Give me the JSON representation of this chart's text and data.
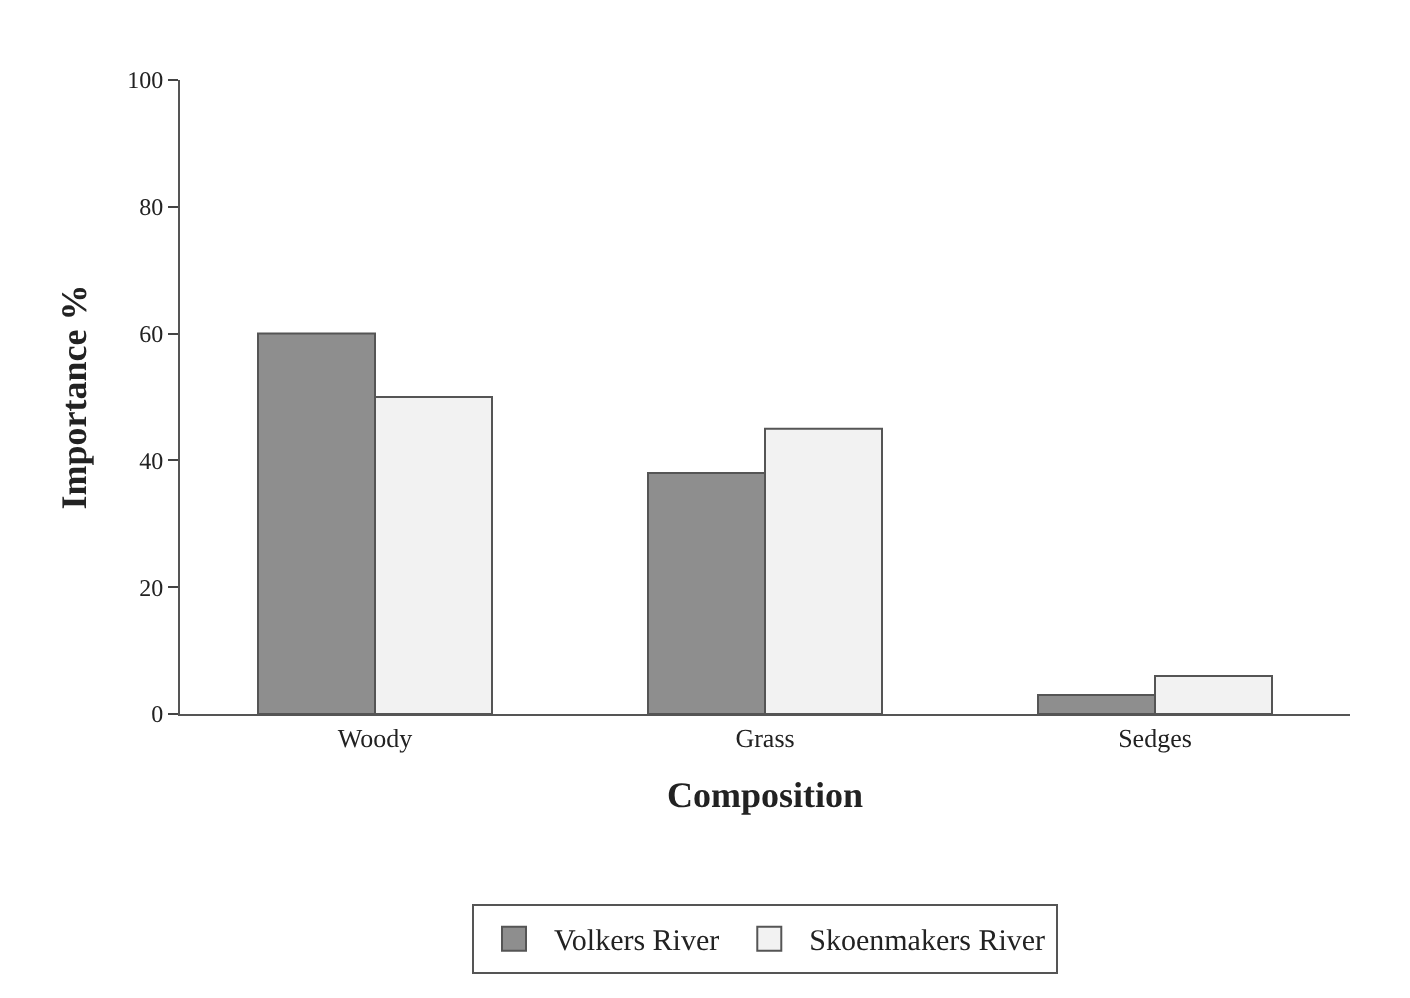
{
  "chart_data": {
    "type": "bar",
    "xlabel": "Composition",
    "ylabel": "Importance %",
    "categories": [
      "Woody",
      "Grass",
      "Sedges"
    ],
    "series": [
      {
        "name": "Volkers River",
        "color": "#8e8e8e",
        "values": [
          60,
          38,
          3
        ]
      },
      {
        "name": "Skoenmakers River",
        "color": "#f2f2f2",
        "values": [
          50,
          45,
          6
        ]
      }
    ],
    "ylim": [
      0,
      100
    ],
    "yticks": [
      0,
      20,
      40,
      60,
      80,
      100
    ],
    "legend": "bottom"
  }
}
